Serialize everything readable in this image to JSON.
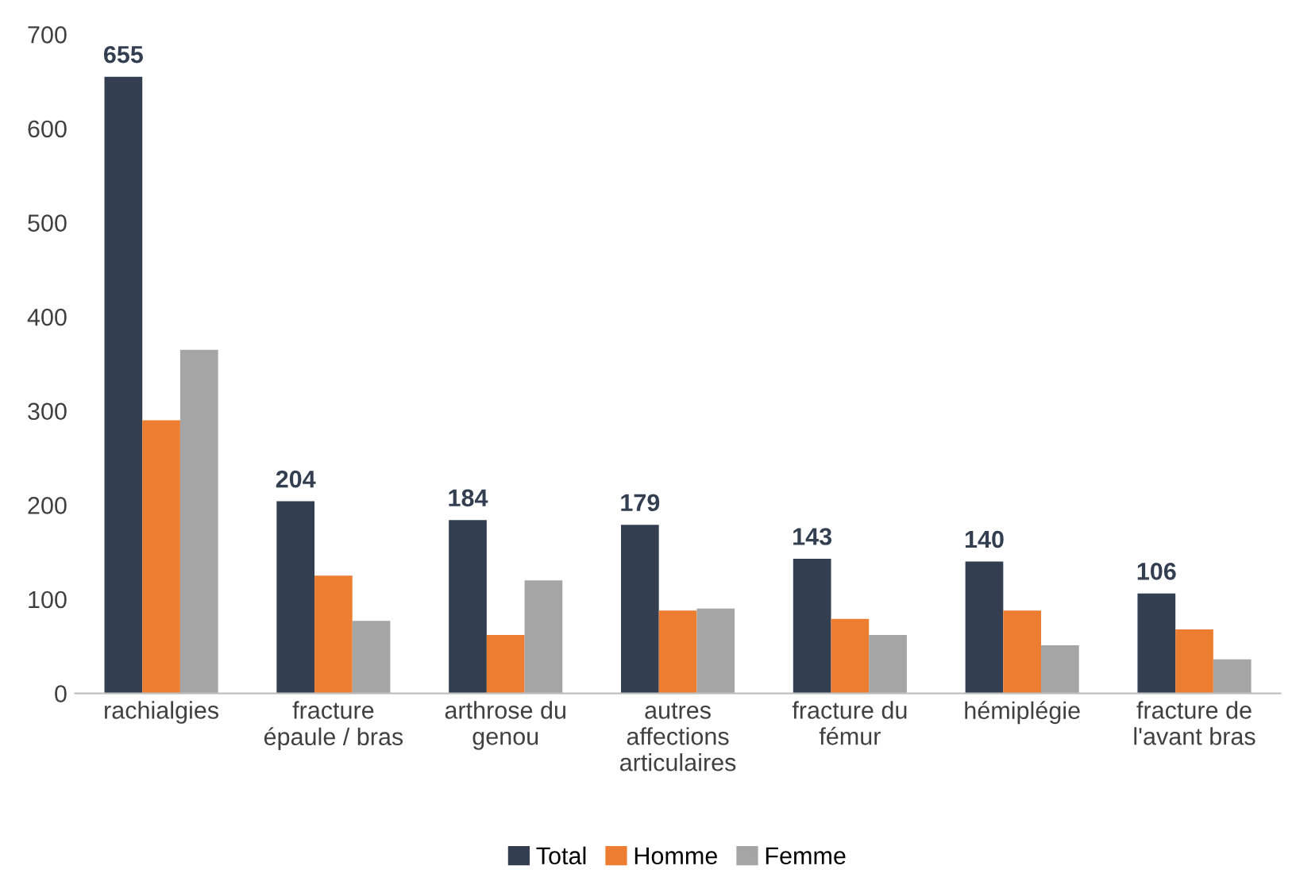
{
  "chart_data": {
    "type": "bar",
    "categories": [
      "rachialgies",
      "fracture\népaule / bras",
      "arthrose du\ngenou",
      "autres\naffections\narticulaires",
      "fracture du\nfémur",
      "hémiplégie",
      "fracture de\nl'avant bras"
    ],
    "series": [
      {
        "name": "Total",
        "color": "#333f50",
        "values": [
          655,
          204,
          184,
          179,
          143,
          140,
          106
        ],
        "value_labels": [
          "655",
          "204",
          "184",
          "179",
          "143",
          "140",
          "106"
        ]
      },
      {
        "name": "Homme",
        "color": "#ed7d31",
        "values": [
          290,
          125,
          62,
          88,
          79,
          88,
          68
        ]
      },
      {
        "name": "Femme",
        "color": "#a5a5a5",
        "values": [
          365,
          77,
          120,
          90,
          62,
          51,
          36
        ]
      }
    ],
    "ylim": [
      0,
      700
    ],
    "yticks": [
      0,
      100,
      200,
      300,
      400,
      500,
      600,
      700
    ],
    "grid": false,
    "legend": "bottom"
  }
}
